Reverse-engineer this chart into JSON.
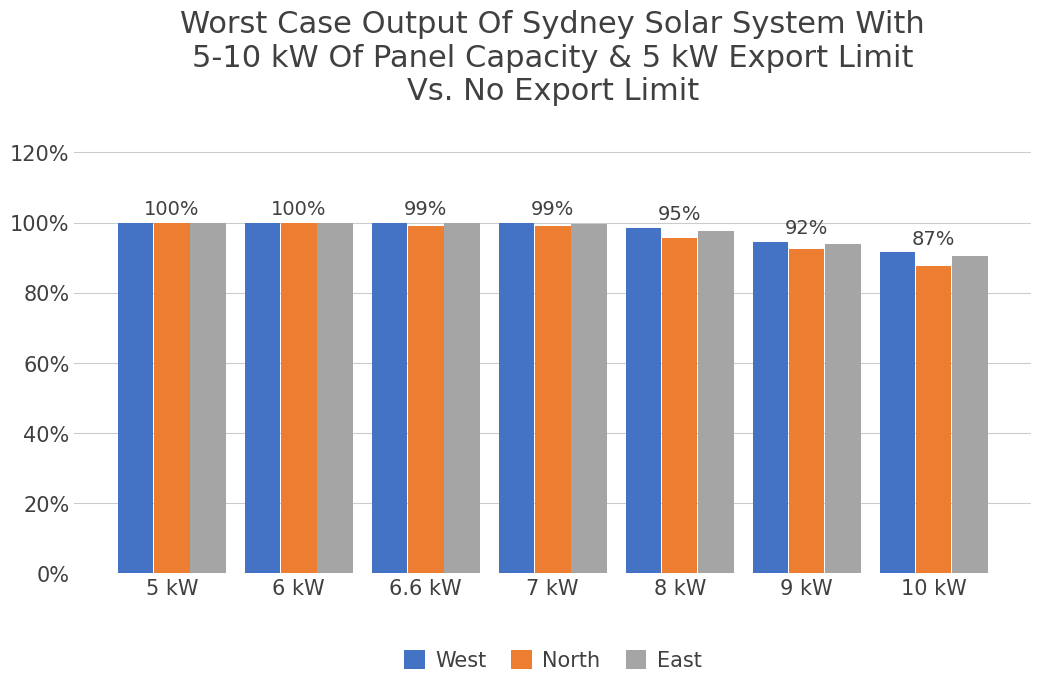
{
  "title": "Worst Case Output Of Sydney Solar System With\n5-10 kW Of Panel Capacity & 5 kW Export Limit\nVs. No Export Limit",
  "categories": [
    "5 kW",
    "6 kW",
    "6.6 kW",
    "7 kW",
    "8 kW",
    "9 kW",
    "10 kW"
  ],
  "west": [
    1.0,
    1.0,
    1.0,
    1.0,
    0.985,
    0.945,
    0.915
  ],
  "north": [
    1.0,
    1.0,
    0.99,
    0.99,
    0.955,
    0.925,
    0.875
  ],
  "east": [
    1.0,
    1.0,
    1.0,
    0.995,
    0.975,
    0.94,
    0.905
  ],
  "annotations": [
    "100%",
    "100%",
    "99%",
    "99%",
    "95%",
    "92%",
    "87%"
  ],
  "bar_colors": [
    "#4472C4",
    "#ED7D31",
    "#A5A5A5"
  ],
  "legend_labels": [
    "West",
    "North",
    "East"
  ],
  "ylim": [
    0,
    1.28
  ],
  "yticks": [
    0,
    0.2,
    0.4,
    0.6,
    0.8,
    1.0,
    1.2
  ],
  "ytick_labels": [
    "0%",
    "20%",
    "40%",
    "60%",
    "80%",
    "100%",
    "120%"
  ],
  "title_fontsize": 22,
  "tick_fontsize": 15,
  "legend_fontsize": 15,
  "annotation_fontsize": 14,
  "background_color": "#FFFFFF",
  "grid_color": "#CCCCCC",
  "text_color": "#404040"
}
